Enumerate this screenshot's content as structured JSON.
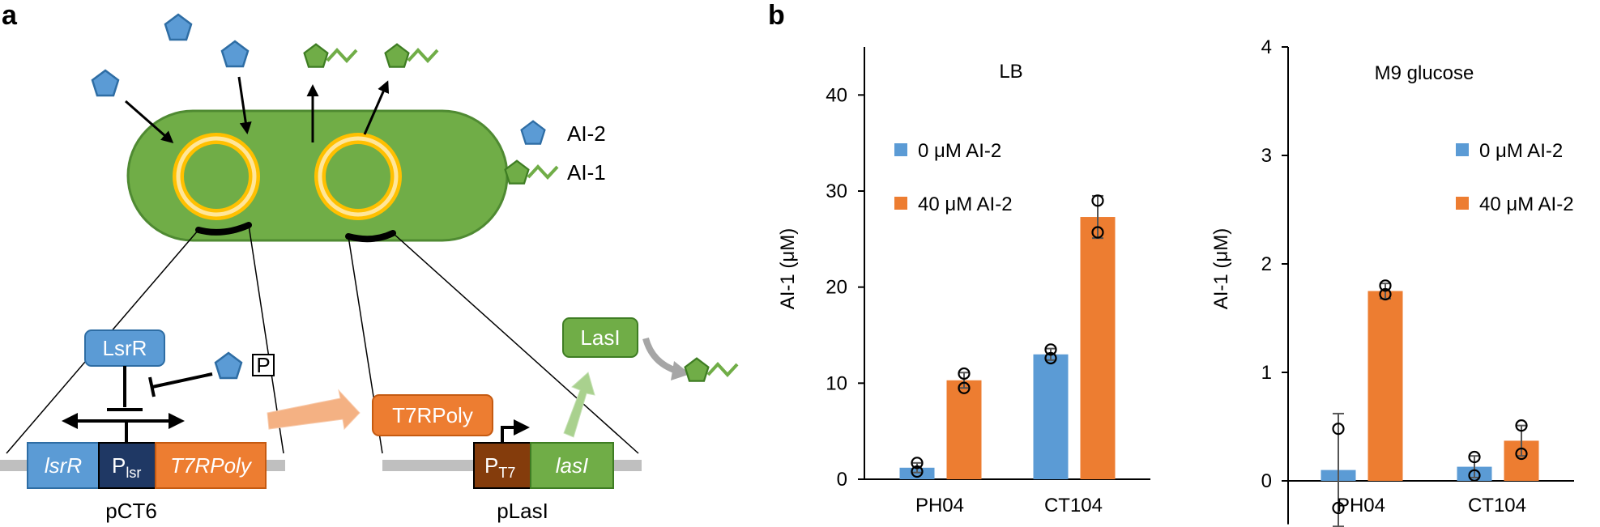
{
  "panels": {
    "a": "a",
    "b": "b"
  },
  "diagram": {
    "legend": {
      "ai2": "AI-2",
      "ai1": "AI-1"
    },
    "lsrr_protein": "LsrR",
    "phosphate": "P",
    "plasmid1": {
      "seg1": "lsrR",
      "promoter_main": "P",
      "promoter_sub": "lsr",
      "seg3": "T7RPoly",
      "name": "pCT6"
    },
    "t7rpoly_protein": "T7RPoly",
    "lasi_protein": "LasI",
    "plasmid2": {
      "promoter_main": "P",
      "promoter_sub": "T7",
      "seg2": "lasI",
      "name": "pLasI"
    }
  },
  "chart_data": [
    {
      "type": "bar",
      "title": "LB",
      "ylabel": "AI-1 (μM)",
      "ylim": [
        0,
        45
      ],
      "yticks": [
        0,
        10,
        20,
        30,
        40
      ],
      "categories": [
        "PH04",
        "CT104"
      ],
      "series": [
        {
          "name": "0 μM AI-2",
          "color": "#5b9bd5",
          "values": [
            1.2,
            13.0
          ],
          "err": [
            0.5,
            0.6
          ],
          "points": [
            [
              1.7,
              0.8
            ],
            [
              13.5,
              12.6
            ]
          ]
        },
        {
          "name": "40 μM AI-2",
          "color": "#ed7d31",
          "values": [
            10.3,
            27.3
          ],
          "err": [
            0.8,
            2.2
          ],
          "points": [
            [
              11.0,
              9.5
            ],
            [
              29.0,
              25.7
            ]
          ]
        }
      ],
      "legend": "upper-left"
    },
    {
      "type": "bar",
      "title": "M9 glucose",
      "ylabel": "AI-1 (μM)",
      "ylim": [
        -0.4,
        4
      ],
      "yticks": [
        0,
        1,
        2,
        3,
        4
      ],
      "categories": [
        "PH04",
        "CT104"
      ],
      "series": [
        {
          "name": "0 μM AI-2",
          "color": "#5b9bd5",
          "values": [
            0.1,
            0.13
          ],
          "err": [
            0.52,
            0.1
          ],
          "points": [
            [
              0.48,
              -0.25
            ],
            [
              0.22,
              0.05
            ]
          ]
        },
        {
          "name": "40 μM AI-2",
          "color": "#ed7d31",
          "values": [
            1.75,
            0.37
          ],
          "err": [
            0.07,
            0.14
          ],
          "points": [
            [
              1.8,
              1.72
            ],
            [
              0.51,
              0.25
            ]
          ]
        }
      ],
      "legend": "upper-right"
    }
  ]
}
